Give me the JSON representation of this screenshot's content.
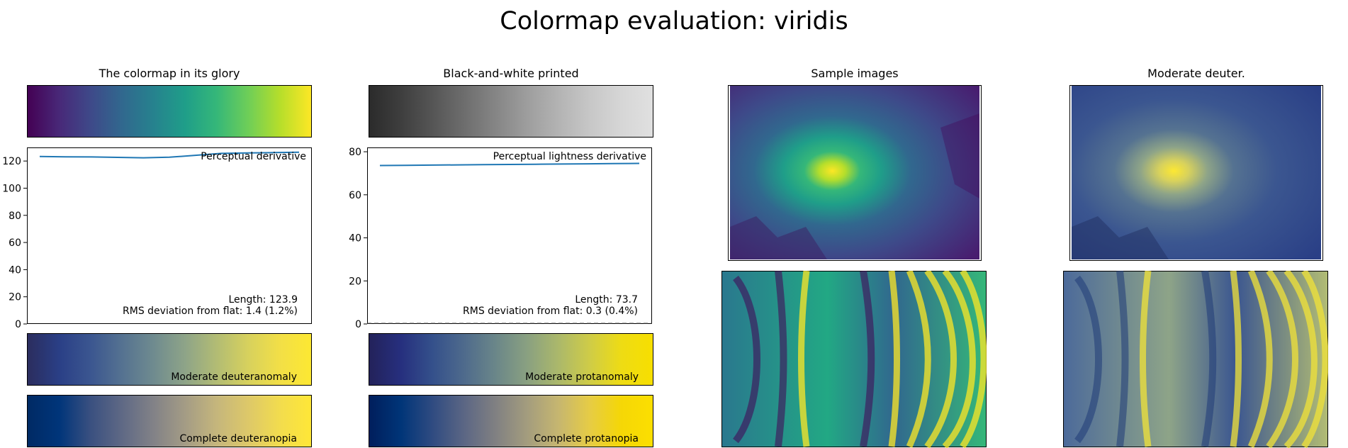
{
  "suptitle": "Colormap evaluation: viridis",
  "columns": {
    "col1_title": "The colormap in its glory",
    "col2_title": "Black-and-white printed",
    "col3_title": "Sample images",
    "col4_title": "Moderate deuter."
  },
  "colors": {
    "viridis": [
      "#440154",
      "#482878",
      "#3e4989",
      "#31688e",
      "#26828e",
      "#1f9e89",
      "#35b779",
      "#6ece58",
      "#b5de2b",
      "#fde725"
    ],
    "grayscale": [
      "#2b2b2b",
      "#3e3e3e",
      "#555555",
      "#6d6d6d",
      "#858585",
      "#9d9d9d",
      "#b3b3b3",
      "#c7c7c7",
      "#d6d6d6",
      "#e0e0e0"
    ],
    "moderate_deuteranomaly": [
      "#2b2d5e",
      "#2a3f86",
      "#3b5690",
      "#557291",
      "#6f8b8f",
      "#8ea488",
      "#b2bc74",
      "#d7d15d",
      "#f2df47",
      "#fde832"
    ],
    "moderate_protanomaly": [
      "#23225a",
      "#262f7e",
      "#34508b",
      "#4e6a8c",
      "#6a8689",
      "#89a081",
      "#abb86b",
      "#cfcc47",
      "#eedc14",
      "#f7df00"
    ],
    "complete_deuteranopia": [
      "#002a64",
      "#00357a",
      "#3a5080",
      "#5f6985",
      "#828287",
      "#a49c85",
      "#c5b67c",
      "#ddc869",
      "#f2dc4e",
      "#ffe737"
    ],
    "complete_protanopia": [
      "#001e5c",
      "#003578",
      "#2f4b81",
      "#5b6684",
      "#808082",
      "#a39c7e",
      "#c6b670",
      "#e6cc45",
      "#f5d706",
      "#fcdf00"
    ],
    "line": "#1f77b4",
    "sample_dark": "#3b1d62",
    "sample_mid": "#2e6e8e",
    "sample_bright": "#e9e51f",
    "deuter_dark": "#1f3b78",
    "deuter_mid": "#4c6a9a",
    "deuter_bright": "#f2e338"
  },
  "labels": {
    "mod_deuter": "Moderate deuteranomaly",
    "mod_protan": "Moderate protanomaly",
    "comp_deuter": "Complete deuteranopia",
    "comp_protan": "Complete protanopia"
  },
  "chart_data": [
    {
      "type": "line",
      "title": "Perceptual derivative",
      "ylim": [
        0,
        130
      ],
      "yticks": [
        0,
        20,
        40,
        60,
        80,
        100,
        120
      ],
      "x": [
        0,
        0.1,
        0.2,
        0.3,
        0.4,
        0.5,
        0.6,
        0.7,
        0.8,
        0.9,
        1.0
      ],
      "values": [
        123.3,
        123.1,
        123.0,
        122.7,
        122.4,
        122.8,
        124.2,
        125.6,
        126.0,
        126.2,
        126.5
      ],
      "length_text": "Length: 123.9",
      "rms_text": "RMS deviation from flat: 1.4 (1.2%)"
    },
    {
      "type": "line",
      "title": "Perceptual lightness derivative",
      "ylim": [
        0,
        82
      ],
      "yticks": [
        0,
        20,
        40,
        60,
        80
      ],
      "x": [
        0,
        0.1,
        0.2,
        0.3,
        0.4,
        0.5,
        0.6,
        0.7,
        0.8,
        0.9,
        1.0
      ],
      "values": [
        73.6,
        73.7,
        73.8,
        73.9,
        74.0,
        74.1,
        74.2,
        74.3,
        74.4,
        74.5,
        74.6
      ],
      "length_text": "Length: 73.7",
      "rms_text": "RMS deviation from flat: 0.3 (0.4%)"
    }
  ]
}
